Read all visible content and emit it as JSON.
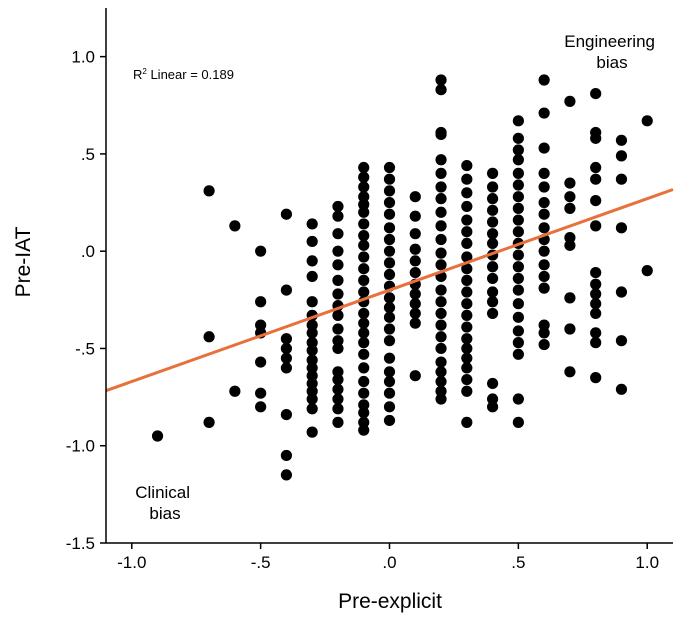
{
  "chart_data": {
    "type": "scatter",
    "xlabel": "Pre-explicit",
    "ylabel": "Pre-IAT",
    "xlim": [
      -1.1,
      1.1
    ],
    "ylim": [
      -1.5,
      1.25
    ],
    "x_ticks": [
      -1.0,
      -0.5,
      0.0,
      0.5,
      1.0
    ],
    "x_tick_labels": [
      "-1.0",
      "-.5",
      ".0",
      ".5",
      "1.0"
    ],
    "y_ticks": [
      -1.5,
      -1.0,
      -0.5,
      0.0,
      0.5,
      1.0
    ],
    "y_tick_labels": [
      "-1.5",
      "-1.0",
      "-.5",
      ".0",
      ".5",
      "1.0"
    ],
    "grid": false,
    "fit_line": {
      "type": "linear",
      "slope": 0.47,
      "intercept": -0.2,
      "color": "#e8703a"
    },
    "r2_label": {
      "prefix": "R",
      "sup": "2",
      "text": " Linear = 0.189"
    },
    "annotations": [
      {
        "lines": [
          "Engineering",
          "bias"
        ],
        "anchor": "top-right"
      },
      {
        "lines": [
          "Clinical",
          "bias"
        ],
        "anchor": "bottom-left"
      }
    ],
    "point_color": "#000000",
    "points": [
      [
        -0.9,
        -0.95
      ],
      [
        -0.7,
        0.31
      ],
      [
        -0.7,
        -0.44
      ],
      [
        -0.7,
        -0.88
      ],
      [
        -0.6,
        0.13
      ],
      [
        -0.6,
        -0.72
      ],
      [
        -0.5,
        0.0
      ],
      [
        -0.5,
        -0.26
      ],
      [
        -0.5,
        -0.38
      ],
      [
        -0.5,
        -0.42
      ],
      [
        -0.5,
        -0.57
      ],
      [
        -0.5,
        -0.73
      ],
      [
        -0.5,
        -0.8
      ],
      [
        -0.4,
        0.19
      ],
      [
        -0.4,
        -0.2
      ],
      [
        -0.4,
        -0.45
      ],
      [
        -0.4,
        -0.5
      ],
      [
        -0.4,
        -0.55
      ],
      [
        -0.4,
        -0.6
      ],
      [
        -0.4,
        -0.84
      ],
      [
        -0.4,
        -1.05
      ],
      [
        -0.4,
        -1.15
      ],
      [
        -0.3,
        0.14
      ],
      [
        -0.3,
        0.05
      ],
      [
        -0.3,
        -0.05
      ],
      [
        -0.3,
        -0.13
      ],
      [
        -0.3,
        -0.26
      ],
      [
        -0.3,
        -0.33
      ],
      [
        -0.3,
        -0.38
      ],
      [
        -0.3,
        -0.42
      ],
      [
        -0.3,
        -0.47
      ],
      [
        -0.3,
        -0.51
      ],
      [
        -0.3,
        -0.56
      ],
      [
        -0.3,
        -0.6
      ],
      [
        -0.3,
        -0.64
      ],
      [
        -0.3,
        -0.68
      ],
      [
        -0.3,
        -0.72
      ],
      [
        -0.3,
        -0.76
      ],
      [
        -0.3,
        -0.81
      ],
      [
        -0.3,
        -0.93
      ],
      [
        -0.2,
        0.23
      ],
      [
        -0.2,
        0.18
      ],
      [
        -0.2,
        0.09
      ],
      [
        -0.2,
        0.0
      ],
      [
        -0.2,
        -0.07
      ],
      [
        -0.2,
        -0.15
      ],
      [
        -0.2,
        -0.22
      ],
      [
        -0.2,
        -0.28
      ],
      [
        -0.2,
        -0.33
      ],
      [
        -0.2,
        -0.4
      ],
      [
        -0.2,
        -0.46
      ],
      [
        -0.2,
        -0.5
      ],
      [
        -0.2,
        -0.62
      ],
      [
        -0.2,
        -0.66
      ],
      [
        -0.2,
        -0.71
      ],
      [
        -0.2,
        -0.76
      ],
      [
        -0.2,
        -0.81
      ],
      [
        -0.2,
        -0.88
      ],
      [
        -0.1,
        0.43
      ],
      [
        -0.1,
        0.38
      ],
      [
        -0.1,
        0.33
      ],
      [
        -0.1,
        0.28
      ],
      [
        -0.1,
        0.24
      ],
      [
        -0.1,
        0.2
      ],
      [
        -0.1,
        0.14
      ],
      [
        -0.1,
        0.08
      ],
      [
        -0.1,
        0.03
      ],
      [
        -0.1,
        -0.03
      ],
      [
        -0.1,
        -0.09
      ],
      [
        -0.1,
        -0.15
      ],
      [
        -0.1,
        -0.21
      ],
      [
        -0.1,
        -0.26
      ],
      [
        -0.1,
        -0.32
      ],
      [
        -0.1,
        -0.37
      ],
      [
        -0.1,
        -0.42
      ],
      [
        -0.1,
        -0.47
      ],
      [
        -0.1,
        -0.53
      ],
      [
        -0.1,
        -0.6
      ],
      [
        -0.1,
        -0.67
      ],
      [
        -0.1,
        -0.73
      ],
      [
        -0.1,
        -0.79
      ],
      [
        -0.1,
        -0.83
      ],
      [
        -0.1,
        -0.88
      ],
      [
        -0.1,
        -0.92
      ],
      [
        0.0,
        0.43
      ],
      [
        0.0,
        0.37
      ],
      [
        0.0,
        0.31
      ],
      [
        0.0,
        0.25
      ],
      [
        0.0,
        0.19
      ],
      [
        0.0,
        0.12
      ],
      [
        0.0,
        0.06
      ],
      [
        0.0,
        0.0
      ],
      [
        0.0,
        -0.06
      ],
      [
        0.0,
        -0.12
      ],
      [
        0.0,
        -0.18
      ],
      [
        0.0,
        -0.24
      ],
      [
        0.0,
        -0.29
      ],
      [
        0.0,
        -0.34
      ],
      [
        0.0,
        -0.4
      ],
      [
        0.0,
        -0.46
      ],
      [
        0.0,
        -0.55
      ],
      [
        0.0,
        -0.62
      ],
      [
        0.0,
        -0.67
      ],
      [
        0.0,
        -0.73
      ],
      [
        0.0,
        -0.8
      ],
      [
        0.0,
        -0.87
      ],
      [
        0.1,
        0.28
      ],
      [
        0.1,
        0.18
      ],
      [
        0.1,
        0.09
      ],
      [
        0.1,
        0.01
      ],
      [
        0.1,
        -0.05
      ],
      [
        0.1,
        -0.11
      ],
      [
        0.1,
        -0.17
      ],
      [
        0.1,
        -0.22
      ],
      [
        0.1,
        -0.27
      ],
      [
        0.1,
        -0.32
      ],
      [
        0.1,
        -0.37
      ],
      [
        0.1,
        -0.64
      ],
      [
        0.2,
        0.88
      ],
      [
        0.2,
        0.83
      ],
      [
        0.2,
        0.61
      ],
      [
        0.2,
        0.6
      ],
      [
        0.2,
        0.47
      ],
      [
        0.2,
        0.4
      ],
      [
        0.2,
        0.33
      ],
      [
        0.2,
        0.27
      ],
      [
        0.2,
        0.2
      ],
      [
        0.2,
        0.13
      ],
      [
        0.2,
        0.06
      ],
      [
        0.2,
        -0.01
      ],
      [
        0.2,
        -0.07
      ],
      [
        0.2,
        -0.13
      ],
      [
        0.2,
        -0.2
      ],
      [
        0.2,
        -0.26
      ],
      [
        0.2,
        -0.32
      ],
      [
        0.2,
        -0.38
      ],
      [
        0.2,
        -0.44
      ],
      [
        0.2,
        -0.5
      ],
      [
        0.2,
        -0.57
      ],
      [
        0.2,
        -0.62
      ],
      [
        0.2,
        -0.67
      ],
      [
        0.2,
        -0.72
      ],
      [
        0.2,
        -0.76
      ],
      [
        0.3,
        0.44
      ],
      [
        0.3,
        0.37
      ],
      [
        0.3,
        0.3
      ],
      [
        0.3,
        0.23
      ],
      [
        0.3,
        0.16
      ],
      [
        0.3,
        0.1
      ],
      [
        0.3,
        0.04
      ],
      [
        0.3,
        -0.03
      ],
      [
        0.3,
        -0.09
      ],
      [
        0.3,
        -0.15
      ],
      [
        0.3,
        -0.21
      ],
      [
        0.3,
        -0.27
      ],
      [
        0.3,
        -0.33
      ],
      [
        0.3,
        -0.39
      ],
      [
        0.3,
        -0.45
      ],
      [
        0.3,
        -0.5
      ],
      [
        0.3,
        -0.55
      ],
      [
        0.3,
        -0.6
      ],
      [
        0.3,
        -0.66
      ],
      [
        0.3,
        -0.72
      ],
      [
        0.3,
        -0.88
      ],
      [
        0.4,
        0.4
      ],
      [
        0.4,
        0.33
      ],
      [
        0.4,
        0.27
      ],
      [
        0.4,
        0.21
      ],
      [
        0.4,
        0.15
      ],
      [
        0.4,
        0.09
      ],
      [
        0.4,
        0.04
      ],
      [
        0.4,
        -0.02
      ],
      [
        0.4,
        -0.08
      ],
      [
        0.4,
        -0.14
      ],
      [
        0.4,
        -0.21
      ],
      [
        0.4,
        -0.26
      ],
      [
        0.4,
        -0.32
      ],
      [
        0.4,
        -0.68
      ],
      [
        0.4,
        -0.76
      ],
      [
        0.4,
        -0.8
      ],
      [
        0.5,
        0.67
      ],
      [
        0.5,
        0.58
      ],
      [
        0.5,
        0.52
      ],
      [
        0.5,
        0.47
      ],
      [
        0.5,
        0.4
      ],
      [
        0.5,
        0.34
      ],
      [
        0.5,
        0.28
      ],
      [
        0.5,
        0.22
      ],
      [
        0.5,
        0.16
      ],
      [
        0.5,
        0.1
      ],
      [
        0.5,
        0.04
      ],
      [
        0.5,
        -0.02
      ],
      [
        0.5,
        -0.08
      ],
      [
        0.5,
        -0.14
      ],
      [
        0.5,
        -0.2
      ],
      [
        0.5,
        -0.27
      ],
      [
        0.5,
        -0.34
      ],
      [
        0.5,
        -0.41
      ],
      [
        0.5,
        -0.47
      ],
      [
        0.5,
        -0.53
      ],
      [
        0.5,
        -0.76
      ],
      [
        0.5,
        -0.88
      ],
      [
        0.6,
        0.53
      ],
      [
        0.6,
        0.4
      ],
      [
        0.6,
        0.33
      ],
      [
        0.6,
        0.25
      ],
      [
        0.6,
        0.19
      ],
      [
        0.6,
        0.12
      ],
      [
        0.6,
        0.06
      ],
      [
        0.6,
        0.0
      ],
      [
        0.6,
        -0.07
      ],
      [
        0.6,
        -0.13
      ],
      [
        0.6,
        -0.19
      ],
      [
        0.6,
        -0.38
      ],
      [
        0.6,
        -0.42
      ],
      [
        0.6,
        -0.48
      ],
      [
        0.7,
        0.35
      ],
      [
        0.7,
        0.28
      ],
      [
        0.7,
        0.22
      ],
      [
        0.7,
        0.07
      ],
      [
        0.7,
        0.03
      ],
      [
        0.7,
        -0.24
      ],
      [
        0.7,
        -0.4
      ],
      [
        0.7,
        -0.62
      ],
      [
        0.6,
        0.88
      ],
      [
        0.6,
        0.71
      ],
      [
        0.7,
        0.77
      ],
      [
        0.8,
        0.81
      ],
      [
        0.8,
        0.61
      ],
      [
        0.8,
        0.58
      ],
      [
        0.8,
        0.43
      ],
      [
        0.8,
        0.37
      ],
      [
        0.8,
        0.26
      ],
      [
        0.8,
        0.13
      ],
      [
        0.8,
        -0.11
      ],
      [
        0.8,
        -0.17
      ],
      [
        0.8,
        -0.22
      ],
      [
        0.8,
        -0.27
      ],
      [
        0.8,
        -0.32
      ],
      [
        0.8,
        -0.42
      ],
      [
        0.8,
        -0.47
      ],
      [
        0.8,
        -0.65
      ],
      [
        0.9,
        0.57
      ],
      [
        0.9,
        0.49
      ],
      [
        0.9,
        0.37
      ],
      [
        0.9,
        0.12
      ],
      [
        0.9,
        -0.21
      ],
      [
        0.9,
        -0.46
      ],
      [
        0.9,
        -0.71
      ],
      [
        1.0,
        0.67
      ],
      [
        1.0,
        -0.1
      ]
    ]
  }
}
